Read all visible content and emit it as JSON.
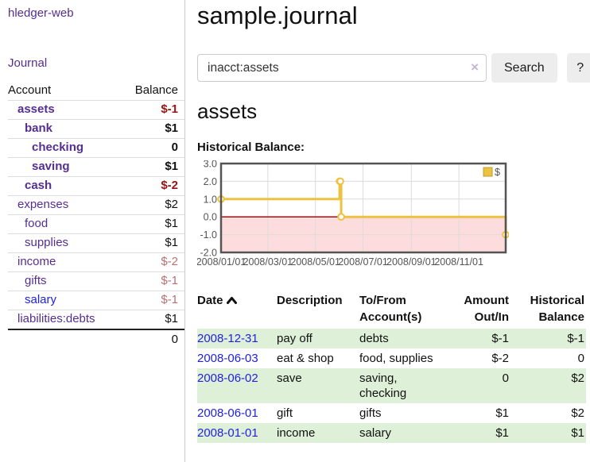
{
  "brand": "hledger-web",
  "nav": {
    "journal_label": "Journal"
  },
  "sidebar": {
    "headers": {
      "account": "Account",
      "balance": "Balance"
    },
    "accounts": [
      {
        "name": "assets",
        "balance": "$-1"
      },
      {
        "name": "bank",
        "balance": "$1"
      },
      {
        "name": "checking",
        "balance": "0"
      },
      {
        "name": "saving",
        "balance": "$1"
      },
      {
        "name": "cash",
        "balance": "$-2"
      },
      {
        "name": "expenses",
        "balance": "$2"
      },
      {
        "name": "food",
        "balance": "$1"
      },
      {
        "name": "supplies",
        "balance": "$1"
      },
      {
        "name": "income",
        "balance": "$-2"
      },
      {
        "name": "gifts",
        "balance": "$-1"
      },
      {
        "name": "salary",
        "balance": "$-1"
      },
      {
        "name": "liabilities:debts",
        "balance": "$1"
      }
    ],
    "total": "0"
  },
  "header": {
    "title": "sample.journal"
  },
  "search": {
    "value": "inacct:assets",
    "clear_symbol": "×",
    "button_label": "Search",
    "help_label": "?"
  },
  "main": {
    "account_heading": "assets",
    "chart_title": "Historical Balance:"
  },
  "chart_data": {
    "type": "line",
    "step": true,
    "title": "Historical Balance",
    "series": [
      {
        "name": "$",
        "color": "#edc240",
        "points": [
          [
            "2008-01-01",
            1
          ],
          [
            "2008-06-01",
            2
          ],
          [
            "2008-06-02",
            2
          ],
          [
            "2008-06-03",
            0
          ],
          [
            "2008-12-31",
            -1
          ]
        ]
      }
    ],
    "x_range": [
      "2008-01-01",
      "2008-12-31"
    ],
    "x_tick_labels": [
      "2008/01/01",
      "2008/03/01",
      "2008/05/01",
      "2008/07/01",
      "2008/09/01",
      "2008/11/01"
    ],
    "y_ticks": [
      3.0,
      2.0,
      1.0,
      0.0,
      -1.0,
      -2.0
    ],
    "ylim": [
      -2,
      3
    ],
    "grid": true,
    "legend_position": "top-right",
    "legend_label": "$",
    "colors": {
      "negative_fill": "#fcdcdc",
      "zero_line": "#8b0000",
      "gridline": "#dcdcdc",
      "border": "#545454",
      "axis_text": "#545454",
      "marker_fill": "#ffffff"
    }
  },
  "register": {
    "headers": {
      "date": "Date",
      "description": "Description",
      "accounts": "To/From Account(s)",
      "amount": "Amount Out/In",
      "balance": "Historical Balance"
    },
    "rows": [
      {
        "date": "2008-12-31",
        "description": "pay off",
        "accounts": "debts",
        "amount": "$-1",
        "balance": "$-1"
      },
      {
        "date": "2008-06-03",
        "description": "eat & shop",
        "accounts": "food, supplies",
        "amount": "$-2",
        "balance": "0"
      },
      {
        "date": "2008-06-02",
        "description": "save",
        "accounts": "saving, checking",
        "amount": "0",
        "balance": "$2"
      },
      {
        "date": "2008-06-01",
        "description": "gift",
        "accounts": "gifts",
        "amount": "$1",
        "balance": "$2"
      },
      {
        "date": "2008-01-01",
        "description": "income",
        "accounts": "salary",
        "amount": "$1",
        "balance": "$1"
      }
    ]
  }
}
